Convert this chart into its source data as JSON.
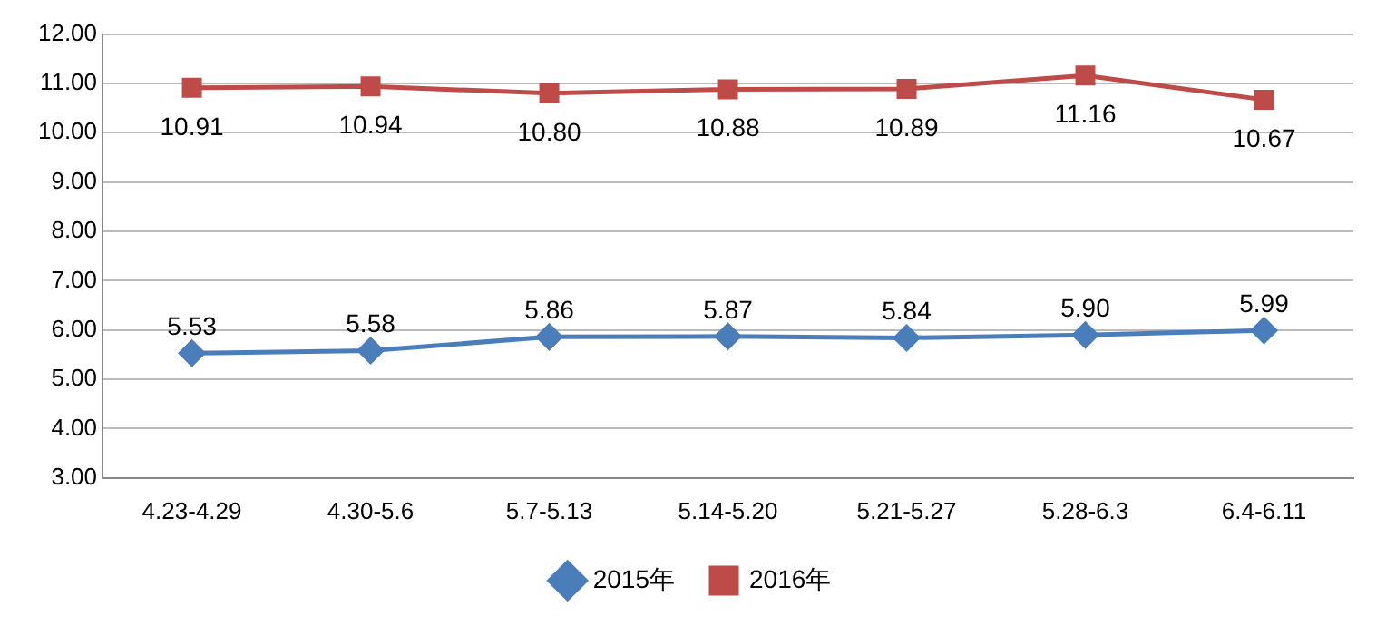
{
  "chart_data": {
    "type": "line",
    "categories": [
      "4.23-4.29",
      "4.30-5.6",
      "5.7-5.13",
      "5.14-5.20",
      "5.21-5.27",
      "5.28-6.3",
      "6.4-6.11"
    ],
    "series": [
      {
        "name": "2015年",
        "color": "#4a7ebb",
        "marker": "diamond",
        "values": [
          5.53,
          5.58,
          5.86,
          5.87,
          5.84,
          5.9,
          5.99
        ],
        "value_labels": [
          "5.53",
          "5.58",
          "5.86",
          "5.87",
          "5.84",
          "5.90",
          "5.99"
        ]
      },
      {
        "name": "2016年",
        "color": "#be4b48",
        "marker": "square",
        "values": [
          10.91,
          10.94,
          10.8,
          10.88,
          10.89,
          11.16,
          10.67
        ],
        "value_labels": [
          "10.91",
          "10.94",
          "10.80",
          "10.88",
          "10.89",
          "11.16",
          "10.67"
        ]
      }
    ],
    "ylim": [
      3,
      12
    ],
    "yticks": [
      {
        "value": 3,
        "label": "3.00"
      },
      {
        "value": 4,
        "label": "4.00"
      },
      {
        "value": 5,
        "label": "5.00"
      },
      {
        "value": 6,
        "label": "6.00"
      },
      {
        "value": 7,
        "label": "7.00"
      },
      {
        "value": 8,
        "label": "8.00"
      },
      {
        "value": 9,
        "label": "9.00"
      },
      {
        "value": 10,
        "label": "10.00"
      },
      {
        "value": 11,
        "label": "11.00"
      },
      {
        "value": 12,
        "label": "12.00"
      }
    ],
    "grid": "y",
    "legend": "bottom",
    "line_style": "solid"
  }
}
